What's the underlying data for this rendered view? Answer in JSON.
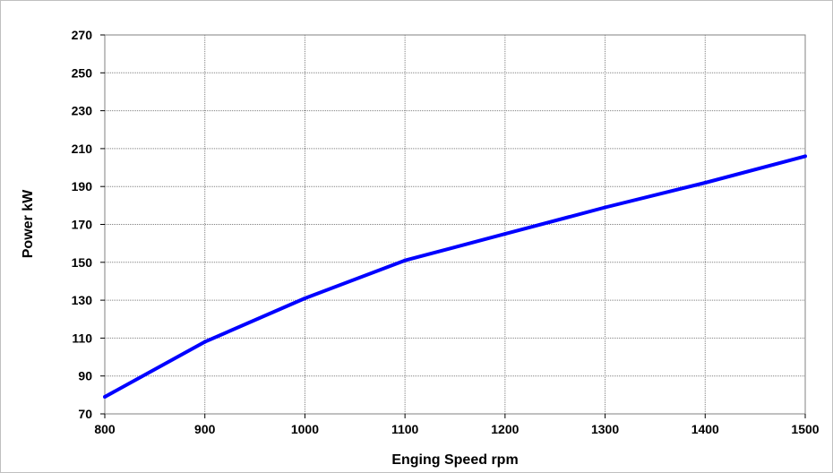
{
  "chart_data": {
    "type": "line",
    "title": "",
    "xlabel": "Enging Speed rpm",
    "ylabel": "Power kW",
    "xlim": [
      800,
      1500
    ],
    "ylim": [
      70,
      270
    ],
    "x_ticks": [
      800,
      900,
      1000,
      1100,
      1200,
      1300,
      1400,
      1500
    ],
    "y_ticks": [
      70,
      90,
      110,
      130,
      150,
      170,
      190,
      210,
      230,
      250,
      270
    ],
    "grid": true,
    "series": [
      {
        "color": "#0000ff",
        "x": [
          800,
          900,
          1000,
          1100,
          1200,
          1300,
          1400,
          1500
        ],
        "y": [
          79,
          108,
          131,
          151,
          165,
          179,
          192,
          206
        ]
      }
    ]
  }
}
